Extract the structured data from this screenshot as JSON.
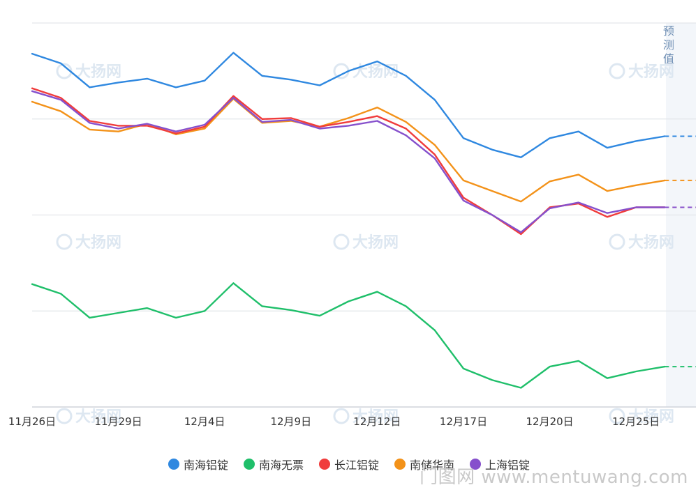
{
  "chart_data": {
    "type": "line",
    "title": "",
    "xlabel": "",
    "ylabel": "",
    "x_tick_labels": [
      "11月26日",
      "11月29日",
      "12月4日",
      "12月9日",
      "12月12日",
      "12月17日",
      "12月20日",
      "12月25日"
    ],
    "x_tick_indices": [
      0,
      3,
      6,
      9,
      12,
      15,
      18,
      21
    ],
    "num_points": 23,
    "forecast_label": "预测值",
    "ylim": [
      0,
      400
    ],
    "series": [
      {
        "name": "南海铝锭",
        "color": "#2f88e0",
        "values": [
          368,
          358,
          333,
          338,
          342,
          333,
          340,
          369,
          345,
          341,
          335,
          350,
          360,
          345,
          320,
          280,
          268,
          260,
          280,
          287,
          270,
          277,
          282,
          282
        ]
      },
      {
        "name": "南海无票",
        "color": "#1fbf6a",
        "values": [
          128,
          118,
          93,
          98,
          103,
          93,
          100,
          129,
          105,
          101,
          95,
          110,
          120,
          105,
          80,
          40,
          28,
          20,
          42,
          48,
          30,
          37,
          42,
          42
        ]
      },
      {
        "name": "长江铝锭",
        "color": "#f03c3c",
        "values": [
          332,
          322,
          298,
          293,
          293,
          285,
          292,
          324,
          300,
          301,
          292,
          297,
          303,
          290,
          263,
          218,
          200,
          180,
          208,
          212,
          198,
          208,
          208,
          208
        ]
      },
      {
        "name": "南储华南",
        "color": "#f39219",
        "values": [
          318,
          308,
          289,
          287,
          295,
          284,
          290,
          321,
          296,
          298,
          292,
          301,
          312,
          297,
          273,
          236,
          225,
          214,
          235,
          242,
          225,
          231,
          236,
          236
        ]
      },
      {
        "name": "上海铝锭",
        "color": "#8650cc",
        "values": [
          329,
          320,
          296,
          290,
          295,
          287,
          294,
          322,
          297,
          299,
          290,
          293,
          298,
          283,
          259,
          215,
          200,
          182,
          207,
          213,
          202,
          208,
          208,
          208
        ]
      }
    ]
  },
  "watermark": "大扬网",
  "site_watermark": "门图网 www.mentuwang.com"
}
